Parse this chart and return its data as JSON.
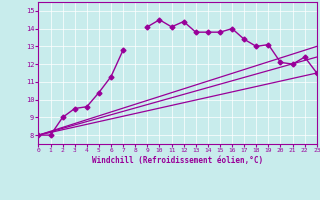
{
  "xlabel": "Windchill (Refroidissement éolien,°C)",
  "bg_color": "#c8ecec",
  "line_color": "#990099",
  "spine_color": "#7700aa",
  "xlim": [
    0,
    23
  ],
  "ylim": [
    7.5,
    15.5
  ],
  "xticks": [
    0,
    1,
    2,
    3,
    4,
    5,
    6,
    7,
    8,
    9,
    10,
    11,
    12,
    13,
    14,
    15,
    16,
    17,
    18,
    19,
    20,
    21,
    22,
    23
  ],
  "yticks": [
    8,
    9,
    10,
    11,
    12,
    13,
    14,
    15
  ],
  "series": [
    {
      "x": [
        0,
        1,
        2,
        3,
        4,
        5,
        6,
        7,
        8,
        9,
        10,
        11,
        12,
        13,
        14,
        15,
        16,
        17,
        18,
        19,
        20,
        21,
        22,
        23
      ],
      "y": [
        8.0,
        8.0,
        9.0,
        9.5,
        9.6,
        10.4,
        11.3,
        12.8,
        null,
        14.1,
        14.5,
        14.1,
        14.4,
        13.8,
        13.8,
        13.8,
        14.0,
        13.4,
        13.0,
        13.1,
        12.1,
        12.0,
        12.4,
        11.5
      ],
      "marker": "D",
      "markersize": 2.5,
      "linewidth": 1.0
    },
    {
      "x": [
        0,
        23
      ],
      "y": [
        8.0,
        11.5
      ],
      "marker": null,
      "markersize": 0,
      "linewidth": 0.9
    },
    {
      "x": [
        0,
        23
      ],
      "y": [
        8.0,
        12.4
      ],
      "marker": null,
      "markersize": 0,
      "linewidth": 0.9
    },
    {
      "x": [
        0,
        23
      ],
      "y": [
        8.0,
        13.0
      ],
      "marker": null,
      "markersize": 0,
      "linewidth": 0.9
    }
  ]
}
